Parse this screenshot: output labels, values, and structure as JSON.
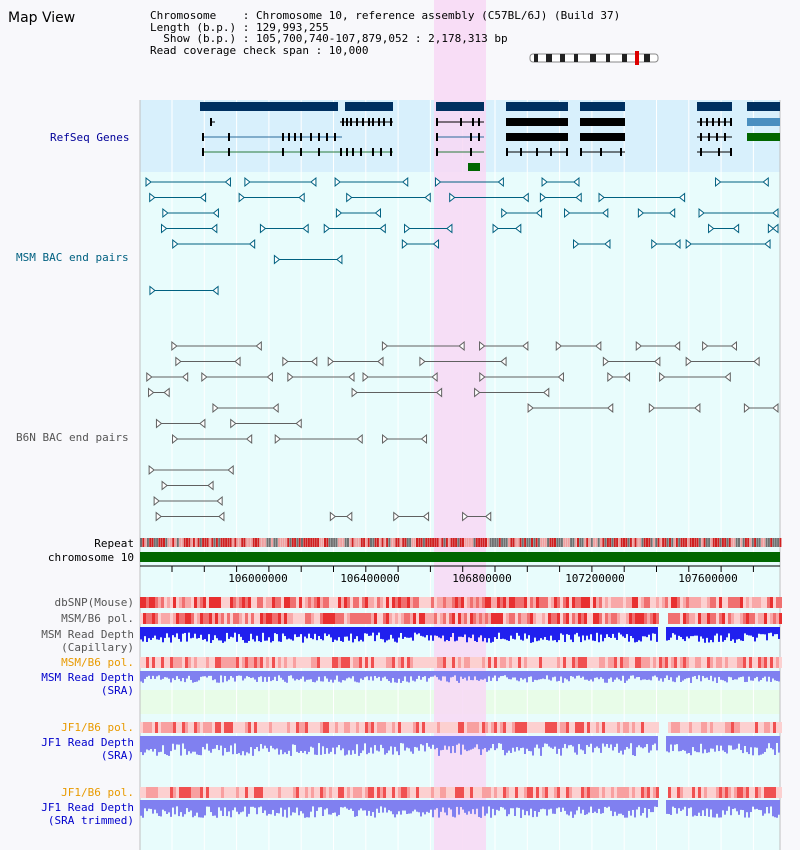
{
  "header": {
    "title": "Map View",
    "chromosome_line": "Chromosome    : Chromosome 10, reference assembly (C57BL/6J) (Build 37)",
    "length_line": "Length (b.p.) : 129,993,255",
    "show_line": "  Show (b.p.) : 105,700,740-107,879,052 : 2,178,313 bp",
    "coverage_line": "Read coverage check span : 10,000"
  },
  "tracks": {
    "refseq": "RefSeq Genes",
    "msm_bac": "MSM BAC end pairs",
    "b6n_bac": "B6N BAC end pairs",
    "repeat": "Repeat",
    "chromosome": "chromosome 10",
    "dbsnp": "dbSNP(Mouse)",
    "msm_b6_pol_1": "MSM/B6 pol.",
    "msm_read_depth_cap_1": "MSM Read Depth",
    "msm_read_depth_cap_2": "(Capillary)",
    "msm_b6_pol_2": "MSM/B6 pol.",
    "msm_read_depth_sra_1": "MSM Read Depth",
    "msm_read_depth_sra_2": "(SRA)",
    "jf1_b6_pol_1": "JF1/B6 pol.",
    "jf1_read_depth_sra_1": "JF1 Read Depth",
    "jf1_read_depth_sra_2": "(SRA)",
    "jf1_b6_pol_2": "JF1/B6 pol.",
    "jf1_read_depth_trim_1": "JF1 Read Depth",
    "jf1_read_depth_trim_2": "(SRA trimmed)"
  },
  "axis": {
    "ticks": [
      "106000000",
      "106400000",
      "106800000",
      "107200000",
      "107600000"
    ]
  },
  "colors": {
    "highlight": "#f8d8f4",
    "refseq_bg": "#d8f0fc",
    "track_bg": "#e8fcfc",
    "navy_gene": "#003060",
    "msm_line": "#006080",
    "b6n_line": "#606060",
    "chrom_green": "#006600",
    "depth_blue": "#2020ee",
    "depth_light": "#8080f0"
  }
}
